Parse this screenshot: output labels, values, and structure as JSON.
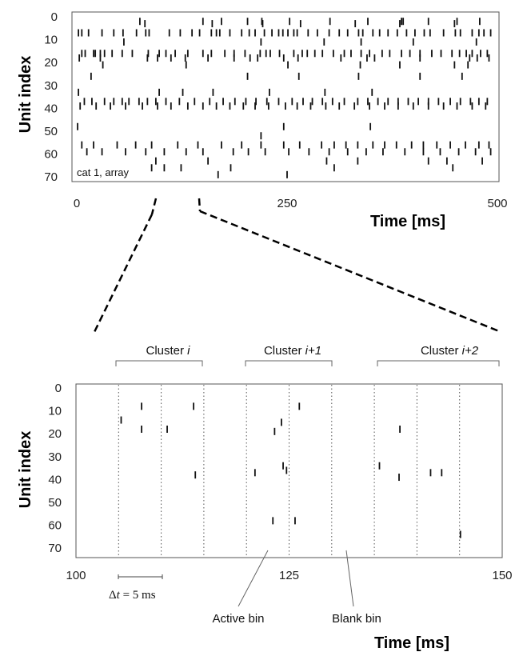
{
  "chart_data": [
    {
      "type": "scatter",
      "title": "",
      "ylabel": "Unit index",
      "xlabel": "Time [ms]",
      "xlim": [
        0,
        500
      ],
      "ylim": [
        0,
        72
      ],
      "x_ticks": [
        "0",
        "250",
        "500"
      ],
      "y_ticks": [
        "0",
        "10",
        "20",
        "30",
        "40",
        "50",
        "60",
        "70"
      ],
      "annotation": "cat 1, array",
      "spikes": [
        [
          2,
          7
        ],
        [
          6,
          7
        ],
        [
          14,
          7
        ],
        [
          30,
          7
        ],
        [
          44,
          7
        ],
        [
          55,
          7
        ],
        [
          71,
          7
        ],
        [
          82,
          7
        ],
        [
          86,
          7
        ],
        [
          110,
          7
        ],
        [
          123,
          7
        ],
        [
          137,
          7
        ],
        [
          146,
          7
        ],
        [
          160,
          7
        ],
        [
          166,
          7
        ],
        [
          170,
          7
        ],
        [
          182,
          7
        ],
        [
          196,
          7
        ],
        [
          205,
          7
        ],
        [
          212,
          7
        ],
        [
          223,
          7
        ],
        [
          232,
          7
        ],
        [
          240,
          7
        ],
        [
          245,
          7
        ],
        [
          251,
          7
        ],
        [
          258,
          7
        ],
        [
          262,
          7
        ],
        [
          275,
          7
        ],
        [
          286,
          7
        ],
        [
          300,
          7
        ],
        [
          312,
          7
        ],
        [
          322,
          7
        ],
        [
          335,
          7
        ],
        [
          340,
          7
        ],
        [
          352,
          7
        ],
        [
          360,
          7
        ],
        [
          370,
          7
        ],
        [
          381,
          7
        ],
        [
          392,
          7
        ],
        [
          402,
          7
        ],
        [
          413,
          7
        ],
        [
          420,
          7
        ],
        [
          436,
          7
        ],
        [
          450,
          7
        ],
        [
          456,
          7
        ],
        [
          470,
          7
        ],
        [
          478,
          7
        ],
        [
          484,
          7
        ],
        [
          492,
          7
        ],
        [
          6,
          16
        ],
        [
          10,
          16
        ],
        [
          20,
          16
        ],
        [
          22,
          16
        ],
        [
          28,
          16
        ],
        [
          33,
          16
        ],
        [
          42,
          16
        ],
        [
          54,
          16
        ],
        [
          66,
          16
        ],
        [
          85,
          16
        ],
        [
          98,
          16
        ],
        [
          106,
          16
        ],
        [
          117,
          16
        ],
        [
          132,
          16
        ],
        [
          150,
          16
        ],
        [
          160,
          16
        ],
        [
          176,
          16
        ],
        [
          187,
          16
        ],
        [
          200,
          16
        ],
        [
          218,
          16
        ],
        [
          225,
          16
        ],
        [
          230,
          16
        ],
        [
          241,
          16
        ],
        [
          258,
          16
        ],
        [
          268,
          16
        ],
        [
          274,
          16
        ],
        [
          283,
          16
        ],
        [
          292,
          16
        ],
        [
          305,
          16
        ],
        [
          318,
          16
        ],
        [
          326,
          16
        ],
        [
          338,
          16
        ],
        [
          348,
          16
        ],
        [
          363,
          16
        ],
        [
          372,
          16
        ],
        [
          386,
          16
        ],
        [
          396,
          16
        ],
        [
          408,
          16
        ],
        [
          422,
          16
        ],
        [
          433,
          16
        ],
        [
          446,
          16
        ],
        [
          455,
          16
        ],
        [
          463,
          16
        ],
        [
          470,
          16
        ],
        [
          480,
          16
        ],
        [
          488,
          16
        ],
        [
          3,
          18
        ],
        [
          28,
          18
        ],
        [
          84,
          18
        ],
        [
          96,
          18
        ],
        [
          112,
          18
        ],
        [
          129,
          18
        ],
        [
          156,
          18
        ],
        [
          187,
          18
        ],
        [
          206,
          18
        ],
        [
          215,
          18
        ],
        [
          246,
          18
        ],
        [
          263,
          18
        ],
        [
          314,
          18
        ],
        [
          345,
          18
        ],
        [
          354,
          18
        ],
        [
          408,
          18
        ],
        [
          467,
          18
        ],
        [
          476,
          18
        ],
        [
          490,
          18
        ],
        [
          75,
          2
        ],
        [
          150,
          2
        ],
        [
          172,
          2
        ],
        [
          203,
          2
        ],
        [
          220,
          2
        ],
        [
          253,
          2
        ],
        [
          301,
          2
        ],
        [
          346,
          2
        ],
        [
          386,
          2
        ],
        [
          388,
          2
        ],
        [
          418,
          2
        ],
        [
          452,
          2
        ],
        [
          479,
          2
        ],
        [
          81,
          3
        ],
        [
          161,
          3
        ],
        [
          221,
          3
        ],
        [
          266,
          3
        ],
        [
          331,
          3
        ],
        [
          384,
          3
        ],
        [
          449,
          3
        ],
        [
          56,
          11
        ],
        [
          219,
          11
        ],
        [
          294,
          11
        ],
        [
          338,
          11
        ],
        [
          400,
          11
        ],
        [
          475,
          11
        ],
        [
          31,
          21
        ],
        [
          130,
          21
        ],
        [
          251,
          21
        ],
        [
          337,
          21
        ],
        [
          384,
          21
        ],
        [
          449,
          21
        ],
        [
          465,
          21
        ],
        [
          17,
          26
        ],
        [
          203,
          26
        ],
        [
          264,
          26
        ],
        [
          335,
          26
        ],
        [
          408,
          26
        ],
        [
          458,
          26
        ],
        [
          2,
          33
        ],
        [
          98,
          33
        ],
        [
          126,
          33
        ],
        [
          162,
          33
        ],
        [
          229,
          33
        ],
        [
          295,
          33
        ],
        [
          351,
          33
        ],
        [
          9,
          37
        ],
        [
          18,
          37
        ],
        [
          33,
          37
        ],
        [
          44,
          37
        ],
        [
          54,
          37
        ],
        [
          62,
          37
        ],
        [
          74,
          37
        ],
        [
          84,
          37
        ],
        [
          94,
          37
        ],
        [
          106,
          37
        ],
        [
          122,
          37
        ],
        [
          140,
          37
        ],
        [
          158,
          37
        ],
        [
          174,
          37
        ],
        [
          188,
          37
        ],
        [
          201,
          37
        ],
        [
          213,
          37
        ],
        [
          226,
          37
        ],
        [
          240,
          37
        ],
        [
          256,
          37
        ],
        [
          269,
          37
        ],
        [
          280,
          37
        ],
        [
          292,
          37
        ],
        [
          304,
          37
        ],
        [
          318,
          37
        ],
        [
          334,
          37
        ],
        [
          346,
          37
        ],
        [
          358,
          37
        ],
        [
          370,
          37
        ],
        [
          382,
          37
        ],
        [
          394,
          37
        ],
        [
          406,
          37
        ],
        [
          418,
          37
        ],
        [
          430,
          37
        ],
        [
          444,
          37
        ],
        [
          456,
          37
        ],
        [
          468,
          37
        ],
        [
          478,
          37
        ],
        [
          488,
          37
        ],
        [
          4,
          39
        ],
        [
          23,
          39
        ],
        [
          40,
          39
        ],
        [
          58,
          39
        ],
        [
          78,
          39
        ],
        [
          96,
          39
        ],
        [
          112,
          39
        ],
        [
          132,
          39
        ],
        [
          150,
          39
        ],
        [
          166,
          39
        ],
        [
          182,
          39
        ],
        [
          198,
          39
        ],
        [
          212,
          39
        ],
        [
          228,
          39
        ],
        [
          248,
          39
        ],
        [
          262,
          39
        ],
        [
          278,
          39
        ],
        [
          296,
          39
        ],
        [
          312,
          39
        ],
        [
          330,
          39
        ],
        [
          348,
          39
        ],
        [
          366,
          39
        ],
        [
          382,
          39
        ],
        [
          400,
          39
        ],
        [
          418,
          39
        ],
        [
          436,
          39
        ],
        [
          452,
          39
        ],
        [
          470,
          39
        ],
        [
          486,
          39
        ],
        [
          1,
          48
        ],
        [
          246,
          48
        ],
        [
          349,
          48
        ],
        [
          219,
          52
        ],
        [
          6,
          56
        ],
        [
          20,
          56
        ],
        [
          48,
          56
        ],
        [
          70,
          56
        ],
        [
          89,
          56
        ],
        [
          120,
          56
        ],
        [
          144,
          56
        ],
        [
          172,
          56
        ],
        [
          196,
          56
        ],
        [
          219,
          56
        ],
        [
          246,
          56
        ],
        [
          265,
          56
        ],
        [
          291,
          56
        ],
        [
          306,
          56
        ],
        [
          320,
          56
        ],
        [
          334,
          56
        ],
        [
          352,
          56
        ],
        [
          366,
          56
        ],
        [
          380,
          56
        ],
        [
          398,
          56
        ],
        [
          412,
          56
        ],
        [
          428,
          56
        ],
        [
          444,
          56
        ],
        [
          462,
          56
        ],
        [
          478,
          56
        ],
        [
          490,
          56
        ],
        [
          12,
          59
        ],
        [
          30,
          59
        ],
        [
          58,
          59
        ],
        [
          82,
          59
        ],
        [
          104,
          59
        ],
        [
          130,
          59
        ],
        [
          150,
          59
        ],
        [
          186,
          59
        ],
        [
          204,
          59
        ],
        [
          224,
          59
        ],
        [
          252,
          59
        ],
        [
          276,
          59
        ],
        [
          300,
          59
        ],
        [
          322,
          59
        ],
        [
          344,
          59
        ],
        [
          364,
          59
        ],
        [
          390,
          59
        ],
        [
          412,
          59
        ],
        [
          432,
          59
        ],
        [
          454,
          59
        ],
        [
          474,
          59
        ],
        [
          492,
          59
        ],
        [
          94,
          63
        ],
        [
          156,
          63
        ],
        [
          297,
          63
        ],
        [
          334,
          63
        ],
        [
          418,
          63
        ],
        [
          440,
          63
        ],
        [
          482,
          63
        ],
        [
          89,
          66
        ],
        [
          104,
          66
        ],
        [
          124,
          66
        ],
        [
          183,
          66
        ],
        [
          306,
          66
        ],
        [
          447,
          66
        ],
        [
          168,
          69
        ],
        [
          250,
          69
        ]
      ]
    },
    {
      "type": "scatter",
      "title": "",
      "ylabel": "Unit index",
      "xlabel": "Time [ms]",
      "xlim": [
        100,
        150
      ],
      "ylim": [
        0,
        72
      ],
      "x_ticks": [
        "100",
        "125",
        "150"
      ],
      "y_ticks": [
        "0",
        "10",
        "20",
        "30",
        "40",
        "50",
        "60",
        "70"
      ],
      "bin_boundaries": [
        105,
        110,
        115,
        120,
        125,
        130,
        135,
        140,
        145
      ],
      "spikes": [
        [
          107.7,
          8
        ],
        [
          113.8,
          8
        ],
        [
          105.3,
          14
        ],
        [
          107.7,
          18
        ],
        [
          110.7,
          18
        ],
        [
          114.0,
          38
        ],
        [
          126.2,
          8
        ],
        [
          124.1,
          15
        ],
        [
          123.3,
          19
        ],
        [
          124.3,
          34
        ],
        [
          124.7,
          36
        ],
        [
          121.0,
          37
        ],
        [
          123.1,
          58
        ],
        [
          125.7,
          58
        ],
        [
          138.0,
          18
        ],
        [
          135.6,
          34
        ],
        [
          137.9,
          39
        ],
        [
          141.6,
          37
        ],
        [
          142.9,
          37
        ],
        [
          145.1,
          64
        ]
      ],
      "clusters": [
        "Cluster i",
        "Cluster i+1",
        "Cluster i+2"
      ],
      "annotations": {
        "delta_t": "Δt = 5 ms",
        "active_bin": "Active bin",
        "blank_bin": "Blank bin"
      }
    }
  ],
  "labels": {
    "top_ylabel": "Unit index",
    "top_xlabel": "Time [ms]",
    "top_note": "cat 1, array",
    "bottom_ylabel": "Unit index",
    "bottom_xlabel": "Time [ms]",
    "cluster_prefix": "Cluster ",
    "cluster_1": "i",
    "cluster_2": "i+1",
    "cluster_3": "i+2",
    "delta_symbol": "Δ",
    "delta_var": "t",
    "delta_rest": " = 5 ms",
    "active_bin": "Active bin",
    "blank_bin": "Blank bin"
  }
}
